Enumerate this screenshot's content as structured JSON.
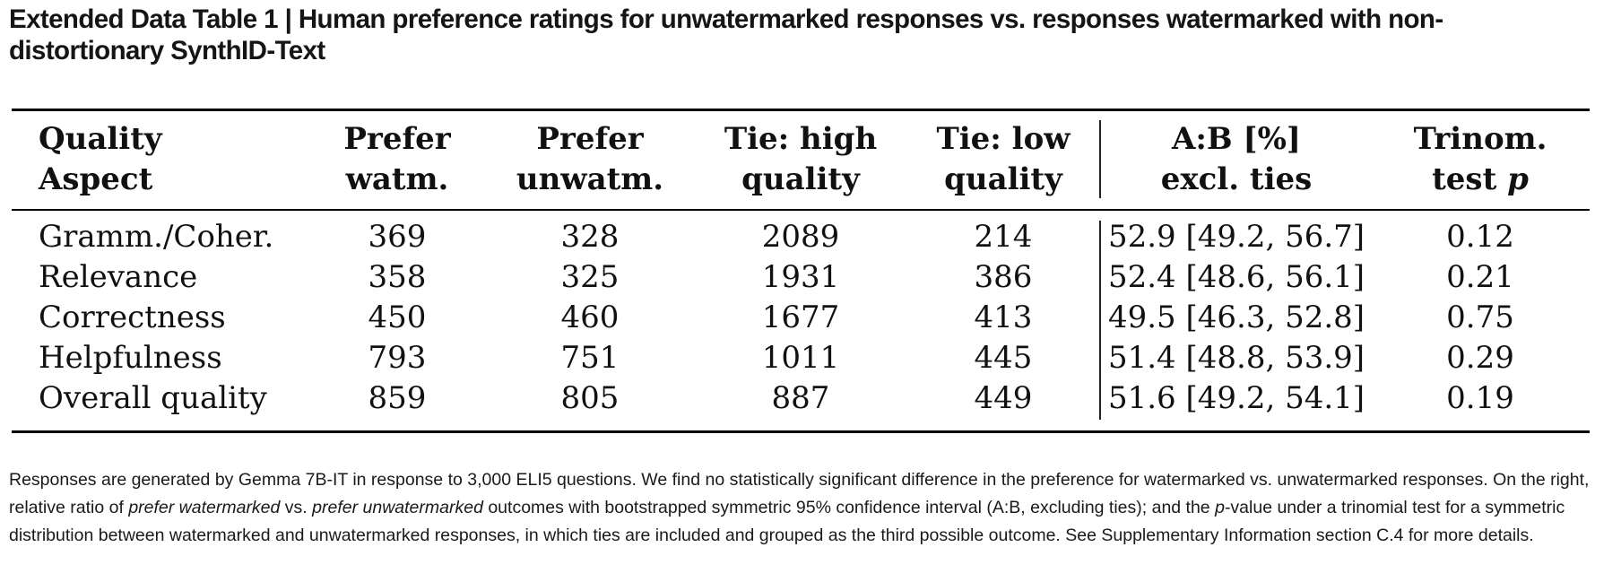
{
  "caption": {
    "title": "Extended Data Table 1 | Human preference ratings for unwatermarked responses vs. responses watermarked with non-distortionary SynthID-Text"
  },
  "table": {
    "headers": [
      {
        "line1": "Quality",
        "line2": "Aspect"
      },
      {
        "line1": "Prefer",
        "line2": "watm."
      },
      {
        "line1": "Prefer",
        "line2": "unwatm."
      },
      {
        "line1": "Tie: high",
        "line2": "quality"
      },
      {
        "line1": "Tie: low",
        "line2": "quality"
      },
      {
        "line1": "A:B [%]",
        "line2": "excl. ties"
      },
      {
        "line1": "Trinom.",
        "line2": "test",
        "line2_italic": "p"
      }
    ],
    "rows": [
      [
        "Gramm./Coher.",
        "369",
        "328",
        "2089",
        "214",
        "52.9 [49.2, 56.7]",
        "0.12"
      ],
      [
        "Relevance",
        "358",
        "325",
        "1931",
        "386",
        "52.4 [48.6, 56.1]",
        "0.21"
      ],
      [
        "Correctness",
        "450",
        "460",
        "1677",
        "413",
        "49.5 [46.3, 52.8]",
        "0.75"
      ],
      [
        "Helpfulness",
        "793",
        "751",
        "1011",
        "445",
        "51.4 [48.8, 53.9]",
        "0.29"
      ],
      [
        "Overall quality",
        "859",
        "805",
        "887",
        "449",
        "51.6 [49.2, 54.1]",
        "0.19"
      ]
    ]
  },
  "notes": {
    "s1": "Responses are generated by Gemma 7B-IT in response to 3,000 ELI5 questions. We find no statistically significant difference in the preference for watermarked vs. unwatermarked responses. On the right, relative ratio of ",
    "em1": "prefer watermarked",
    "s2": " vs. ",
    "em2": "prefer unwatermarked",
    "s3": " outcomes with bootstrapped symmetric 95% confidence interval (A:B, excluding ties); and the ",
    "em3": "p",
    "s4": "-value under a trinomial test for a symmetric distribution between watermarked and unwatermarked responses, in which ties are included and grouped as the third possible outcome. See Supplementary Information section C.4 for more details."
  }
}
